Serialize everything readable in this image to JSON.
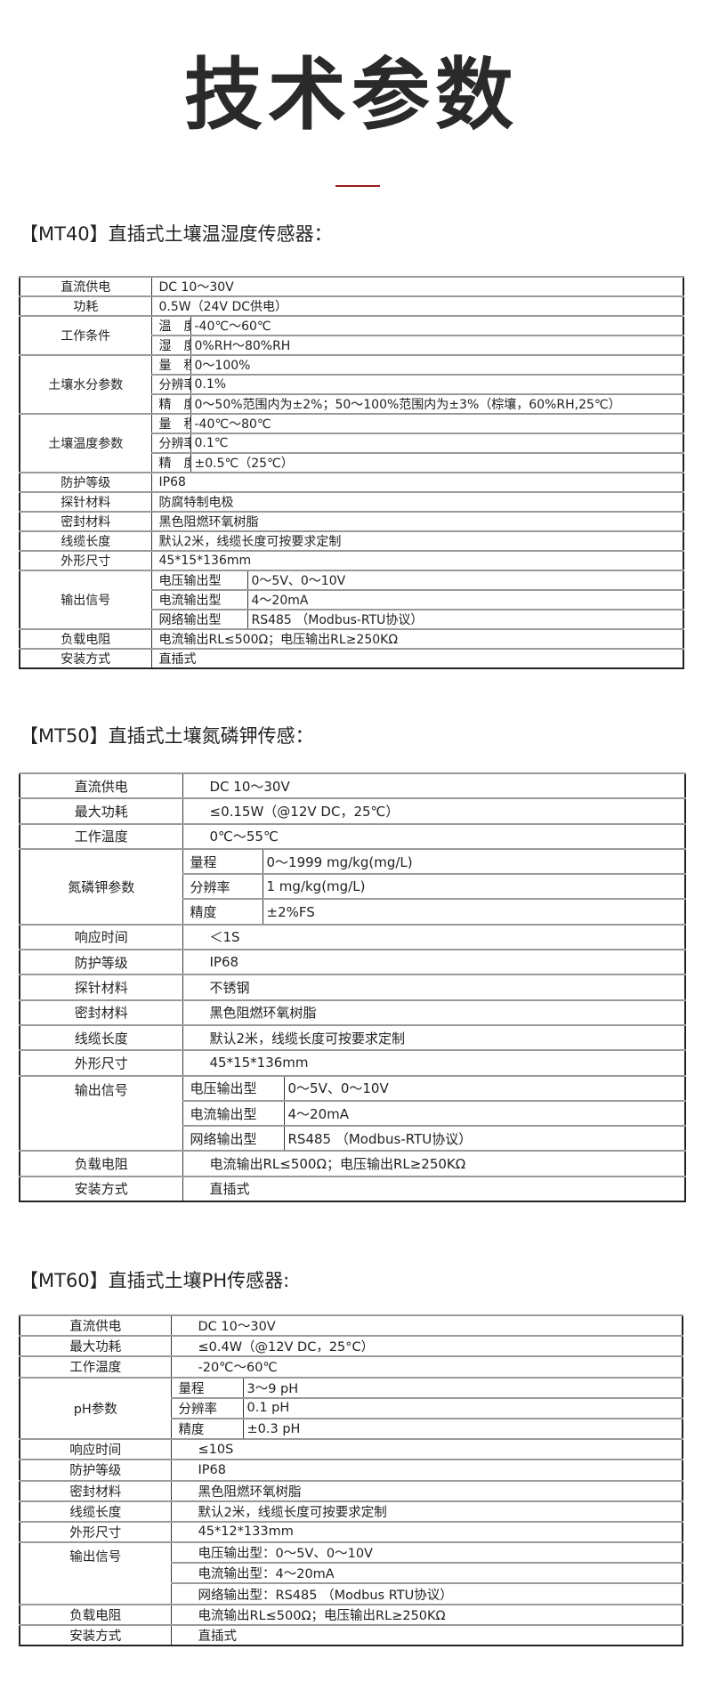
{
  "title": "技术参数",
  "colors": {
    "accent_rule": "#9b1b1b",
    "text": "#222222"
  },
  "sections": [
    {
      "heading": "【MT40】直插式土壤温湿度传感器：",
      "rows": [
        {
          "label": "直流供电",
          "value": "DC 10～30V"
        },
        {
          "label": "功耗",
          "value": "0.5W（24V DC供电）"
        },
        {
          "label": "工作条件",
          "sub": [
            {
              "k": "温　度",
              "v": "-40℃～60℃"
            },
            {
              "k": "湿　度",
              "v": "0%RH～80%RH"
            }
          ]
        },
        {
          "label": "土壤水分参数",
          "sub": [
            {
              "k": "量　程",
              "v": "0～100%"
            },
            {
              "k": "分辨率",
              "v": "0.1%"
            },
            {
              "k": "精　度",
              "v": "0～50%范围内为±2%；50～100%范围内为±3%（棕壤，60%RH,25℃）"
            }
          ]
        },
        {
          "label": "土壤温度参数",
          "sub": [
            {
              "k": "量　程",
              "v": "-40℃～80℃"
            },
            {
              "k": "分辨率",
              "v": "0.1℃"
            },
            {
              "k": "精　度",
              "v": "±0.5℃（25℃）"
            }
          ]
        },
        {
          "label": "防护等级",
          "value": "IP68"
        },
        {
          "label": "探针材料",
          "value": "防腐特制电极"
        },
        {
          "label": "密封材料",
          "value": "黑色阻燃环氧树脂"
        },
        {
          "label": "线缆长度",
          "value": "默认2米，线缆长度可按要求定制"
        },
        {
          "label": "外形尺寸",
          "value": "45*15*136mm"
        },
        {
          "label": "输出信号",
          "sub": [
            {
              "k": "电压输出型",
              "v": "0～5V、0～10V"
            },
            {
              "k": "电流输出型",
              "v": "4～20mA"
            },
            {
              "k": "网络输出型",
              "v": "RS485 （Modbus-RTU协议）"
            }
          ]
        },
        {
          "label": "负载电阻",
          "value": "电流输出RL≤500Ω；电压输出RL≥250KΩ"
        },
        {
          "label": "安装方式",
          "value": "直插式"
        }
      ]
    },
    {
      "heading": "【MT50】直插式土壤氮磷钾传感：",
      "rows": [
        {
          "label": "直流供电",
          "value": "DC 10～30V"
        },
        {
          "label": "最大功耗",
          "value": "≤0.15W（@12V DC，25℃）"
        },
        {
          "label": "工作温度",
          "value": "0℃～55℃"
        },
        {
          "label": "氮磷钾参数",
          "sub": [
            {
              "k": "量程",
              "v": "0～1999 mg/kg(mg/L)"
            },
            {
              "k": "分辨率",
              "v": "1 mg/kg(mg/L)"
            },
            {
              "k": "精度",
              "v": "±2%FS"
            }
          ]
        },
        {
          "label": "响应时间",
          "value": "＜1S"
        },
        {
          "label": "防护等级",
          "value": "IP68"
        },
        {
          "label": "探针材料",
          "value": "不锈钢"
        },
        {
          "label": "密封材料",
          "value": "黑色阻燃环氧树脂"
        },
        {
          "label": "线缆长度",
          "value": "默认2米，线缆长度可按要求定制"
        },
        {
          "label": "外形尺寸",
          "value": "45*15*136mm"
        },
        {
          "label": "输出信号",
          "top": true,
          "sub": [
            {
              "k": "电压输出型",
              "v": "0～5V、0～10V"
            },
            {
              "k": "电流输出型",
              "v": "4～20mA"
            },
            {
              "k": "网络输出型",
              "v": "RS485 （Modbus-RTU协议）"
            }
          ]
        },
        {
          "label": "负载电阻",
          "value": "电流输出RL≤500Ω；电压输出RL≥250KΩ"
        },
        {
          "label": "安装方式",
          "value": "直插式"
        }
      ]
    },
    {
      "heading": "【MT60】直插式土壤PH传感器:",
      "rows": [
        {
          "label": "直流供电",
          "value": "DC 10～30V"
        },
        {
          "label": "最大功耗",
          "value": "≤0.4W（@12V DC，25°C）"
        },
        {
          "label": "工作温度",
          "value": "-20℃～60℃"
        },
        {
          "label": "pH参数",
          "sub": [
            {
              "k": "量程",
              "v": "3～9 pH"
            },
            {
              "k": "分辨率",
              "v": "0.1 pH"
            },
            {
              "k": "精度",
              "v": "±0.3 pH"
            }
          ]
        },
        {
          "label": "响应时间",
          "value": "≤10S"
        },
        {
          "label": "防护等级",
          "value": "IP68"
        },
        {
          "label": "密封材料",
          "value": "黑色阻燃环氧树脂"
        },
        {
          "label": "线缆长度",
          "value": "默认2米，线缆长度可按要求定制"
        },
        {
          "label": "外形尺寸",
          "value": "45*12*133mm"
        },
        {
          "label": "输出信号",
          "top": true,
          "lines": [
            "电压输出型：0～5V、0～10V",
            "电流输出型：4～20mA",
            "网络输出型：RS485 （Modbus RTU协议）"
          ]
        },
        {
          "label": "负载电阻",
          "value": "电流输出RL≤500Ω；电压输出RL≥250KΩ"
        },
        {
          "label": "安装方式",
          "value": "直插式"
        }
      ]
    }
  ]
}
